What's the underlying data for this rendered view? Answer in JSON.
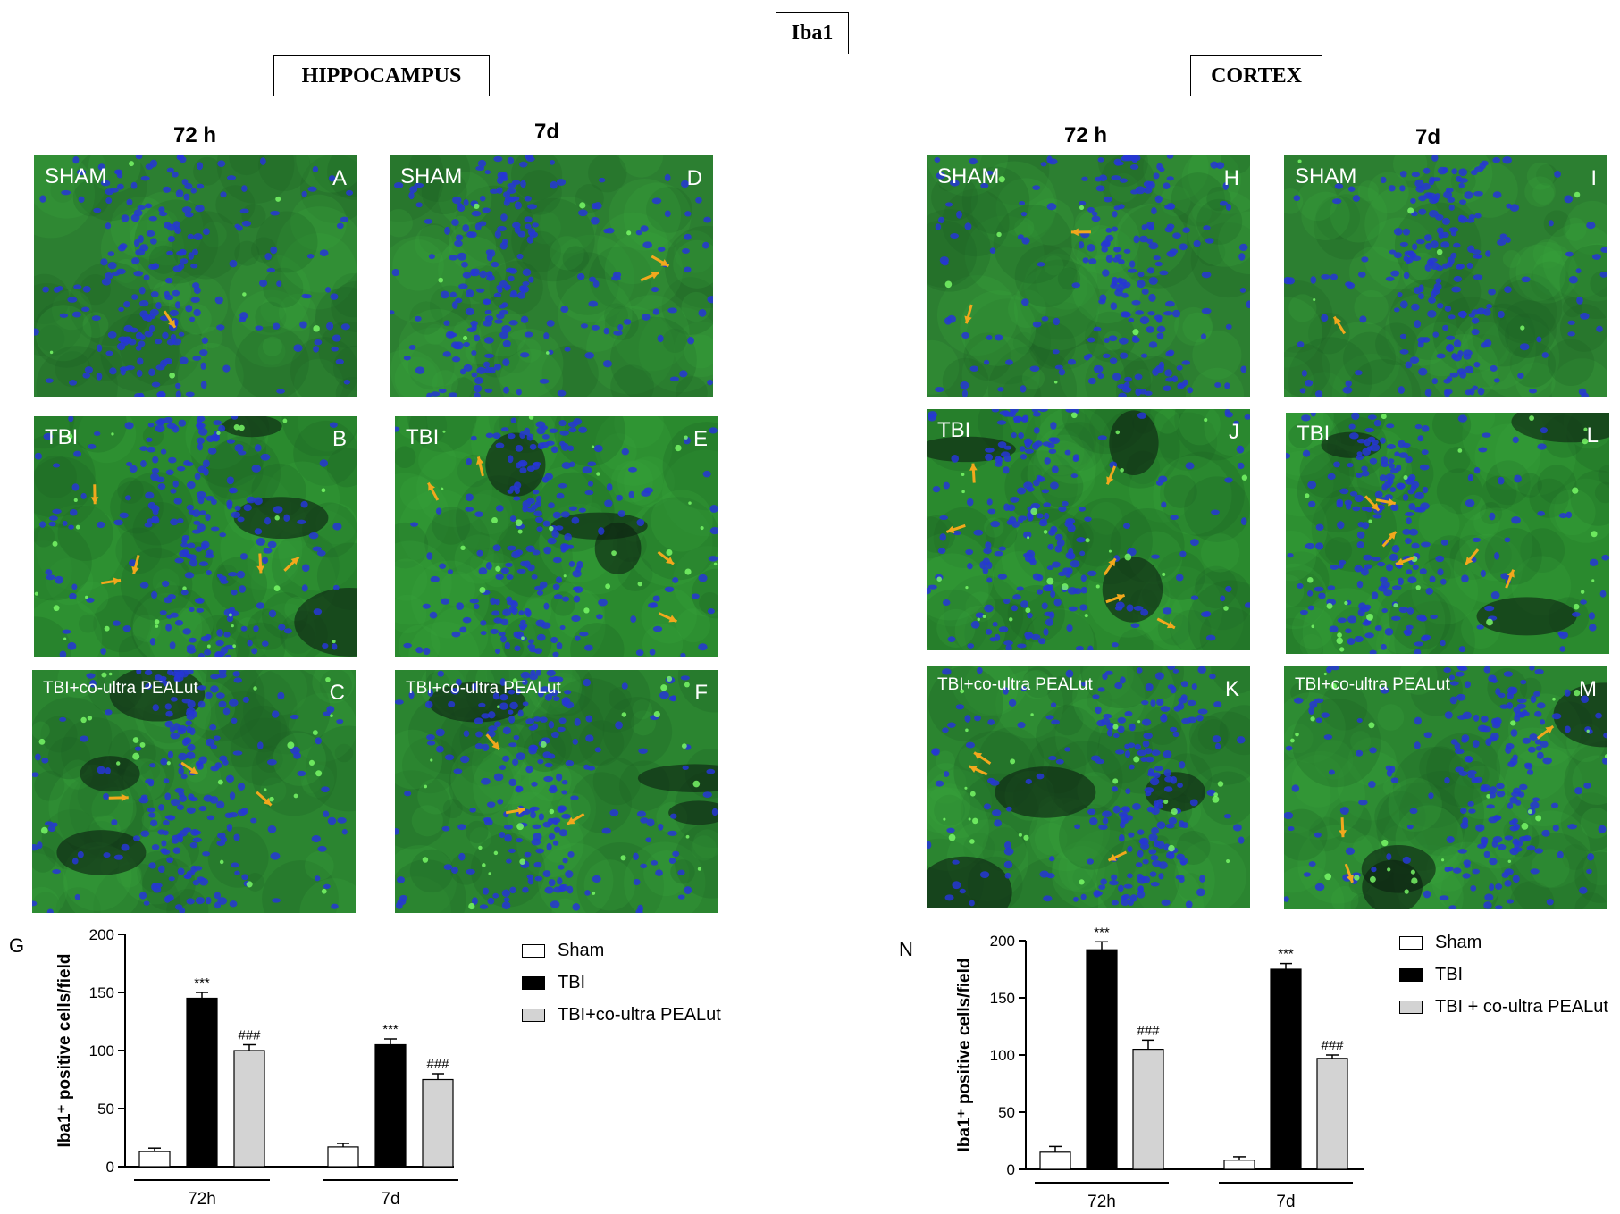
{
  "title": "Iba1",
  "regions": {
    "hippocampus": "HIPPOCAMPUS",
    "cortex": "CORTEX"
  },
  "columns": {
    "hip_72": "72 h",
    "hip_7d": "7d",
    "ctx_72": "72 h",
    "ctx_7d": "7d"
  },
  "panels": [
    {
      "id": "A",
      "label": "SHAM",
      "tone": "sham",
      "arrows": 1
    },
    {
      "id": "B",
      "label": "TBI",
      "tone": "tbi",
      "arrows": 5
    },
    {
      "id": "C",
      "label": "TBI+co-ultra PEALut",
      "tone": "treat",
      "arrows": 3
    },
    {
      "id": "D",
      "label": "SHAM",
      "tone": "sham",
      "arrows": 2
    },
    {
      "id": "E",
      "label": "TBI",
      "tone": "tbi",
      "arrows": 4
    },
    {
      "id": "F",
      "label": "TBI+co-ultra PEALut",
      "tone": "treat",
      "arrows": 3
    },
    {
      "id": "H",
      "label": "SHAM",
      "tone": "sham",
      "arrows": 2
    },
    {
      "id": "I",
      "label": "SHAM",
      "tone": "sham",
      "arrows": 1
    },
    {
      "id": "J",
      "label": "TBI",
      "tone": "tbi",
      "arrows": 6
    },
    {
      "id": "L",
      "label": "TBI",
      "tone": "tbi",
      "arrows": 6
    },
    {
      "id": "K",
      "label": "TBI+co-ultra PEALut",
      "tone": "treat",
      "arrows": 3
    },
    {
      "id": "M",
      "label": "TBI+co-ultra PEALut",
      "tone": "treat",
      "arrows": 3
    }
  ],
  "colors": {
    "sham": "#ffffff",
    "tbi": "#000000",
    "treat": "#d3d3d3",
    "arrow": "#f2a81d",
    "tissue_green": "#2f8f33",
    "nuclei_blue": "#2233c8"
  },
  "chart_data": [
    {
      "panel": "G",
      "type": "bar",
      "categories": [
        "72h",
        "7d"
      ],
      "ylabel": "Iba1⁺ positive cells/field",
      "ylim": [
        0,
        200
      ],
      "yticks": [
        0,
        50,
        100,
        150,
        200
      ],
      "series": [
        {
          "name": "Sham",
          "values": [
            13,
            17
          ],
          "errors": [
            3,
            3
          ],
          "annotations": [
            "",
            ""
          ]
        },
        {
          "name": "TBI",
          "values": [
            145,
            105
          ],
          "errors": [
            5,
            5
          ],
          "annotations": [
            "***",
            "***"
          ]
        },
        {
          "name": "TBI+co-ultra PEALut",
          "values": [
            100,
            75
          ],
          "errors": [
            5,
            5
          ],
          "annotations": [
            "###",
            "###"
          ]
        }
      ]
    },
    {
      "panel": "N",
      "type": "bar",
      "categories": [
        "72h",
        "7d"
      ],
      "ylabel": "Iba1⁺ positive cells/field",
      "ylim": [
        0,
        200
      ],
      "yticks": [
        0,
        50,
        100,
        150,
        200
      ],
      "series": [
        {
          "name": "Sham",
          "values": [
            15,
            8
          ],
          "errors": [
            5,
            3
          ],
          "annotations": [
            "",
            ""
          ]
        },
        {
          "name": "TBI",
          "values": [
            192,
            175
          ],
          "errors": [
            7,
            5
          ],
          "annotations": [
            "***",
            "***"
          ]
        },
        {
          "name": "TBI + co-ultra PEALut",
          "values": [
            105,
            97
          ],
          "errors": [
            8,
            3
          ],
          "annotations": [
            "###",
            "###"
          ]
        }
      ]
    }
  ]
}
